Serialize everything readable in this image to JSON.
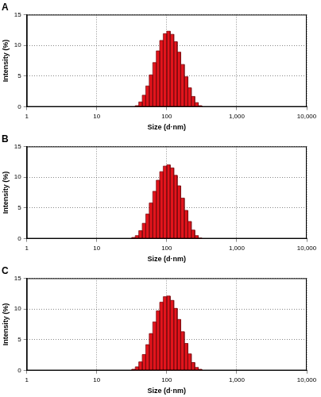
{
  "chart_data": [
    {
      "type": "histogram",
      "title": "A",
      "xlabel": "Size (d·nm)",
      "ylabel": "Intensity (%)",
      "bins": [
        35.5,
        39.8,
        44.7,
        50.1,
        56.2,
        63.1,
        70.8,
        79.4,
        89.1,
        100,
        112,
        126,
        141,
        158,
        178,
        200,
        224,
        251,
        282,
        316
      ],
      "values": [
        0.2,
        0.8,
        1.9,
        3.4,
        5.2,
        7.2,
        9.1,
        10.8,
        11.9,
        12.3,
        11.8,
        10.6,
        8.9,
        6.9,
        4.9,
        3.1,
        1.7,
        0.7,
        0.2
      ],
      "color": "#e3141c",
      "log": "x",
      "xlim": [
        1,
        10000
      ],
      "xticks": [
        1,
        10,
        100,
        {
          "value": 1000,
          "label": "1,000"
        },
        {
          "value": 10000,
          "label": "10,000"
        }
      ],
      "ylim": [
        0,
        15
      ],
      "yticks": [
        0,
        5,
        10,
        15
      ],
      "grid": true
    },
    {
      "type": "histogram",
      "title": "B",
      "xlabel": "Size (d·nm)",
      "ylabel": "Intensity (%)",
      "bins": [
        31.6,
        35.5,
        39.8,
        44.7,
        50.1,
        56.2,
        63.1,
        70.8,
        79.4,
        89.1,
        100,
        112,
        126,
        141,
        158,
        178,
        200,
        224,
        251,
        282,
        316
      ],
      "values": [
        0.2,
        0.5,
        1.3,
        2.5,
        4.0,
        5.8,
        7.7,
        9.5,
        10.9,
        11.8,
        12.0,
        11.5,
        10.3,
        8.6,
        6.6,
        4.6,
        2.8,
        1.4,
        0.5,
        0.1
      ],
      "color": "#e3141c",
      "log": "x",
      "xlim": [
        1,
        10000
      ],
      "xticks": [
        1,
        10,
        100,
        {
          "value": 1000,
          "label": "1,000"
        },
        {
          "value": 10000,
          "label": "10,000"
        }
      ],
      "ylim": [
        0,
        15
      ],
      "yticks": [
        0,
        5,
        10,
        15
      ],
      "grid": true
    },
    {
      "type": "histogram",
      "title": "C",
      "xlabel": "Size (d·nm)",
      "ylabel": "Intensity (%)",
      "bins": [
        31.6,
        35.5,
        39.8,
        44.7,
        50.1,
        56.2,
        63.1,
        70.8,
        79.4,
        89.1,
        100,
        112,
        126,
        141,
        158,
        178,
        200,
        224,
        251,
        282,
        316
      ],
      "values": [
        0.2,
        0.6,
        1.4,
        2.6,
        4.2,
        6.0,
        7.9,
        9.7,
        11.1,
        12.0,
        12.1,
        11.4,
        10.1,
        8.3,
        6.3,
        4.4,
        2.7,
        1.3,
        0.5,
        0.2
      ],
      "color": "#e3141c",
      "log": "x",
      "xlim": [
        1,
        10000
      ],
      "xticks": [
        1,
        10,
        100,
        {
          "value": 1000,
          "label": "1,000"
        },
        {
          "value": 10000,
          "label": "10,000"
        }
      ],
      "ylim": [
        0,
        15
      ],
      "yticks": [
        0,
        5,
        10,
        15
      ],
      "grid": true
    }
  ]
}
